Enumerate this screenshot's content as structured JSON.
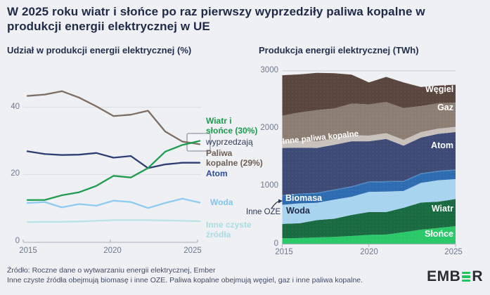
{
  "title": "W 2025 roku wiatr i słońce po raz pierwszy wyprzedziły paliwa kopalne w\nprodukcji energii elektrycznej w UE",
  "colors": {
    "background": "#eef0f4",
    "title_text": "#1e2a47",
    "axis_text": "#6d778e",
    "grid_line": "#d9dce2",
    "axis_line": "#a6adba",
    "highlight_box_stroke": "#9199a6",
    "logo_text": "#2b2c33",
    "logo_green": "#21c55d"
  },
  "left_chart": {
    "annotations": {
      "wind_solar": "Wiatr i\nsłońce (30%)",
      "overtake": "wyprzedzają",
      "fossil": "Paliwa\nkopalne (29%)",
      "atom": "Atom",
      "water": "Woda",
      "other_clean": "Inne czyste\nźródła"
    }
  },
  "footer": {
    "line1": "Źródło: Roczne dane o wytwarzaniu energii elektrycznej, Ember",
    "line2": "Inne czyste źródła obejmują biomasę i inne OZE. Paliwa kopalne obejmują węgiel, gaz i inne paliwa kopalne."
  },
  "logo": {
    "text": "EMBER",
    "part1": "EMB",
    "part2": "R"
  },
  "chart_data": [
    {
      "type": "line",
      "title": "Udział w produkcji energii elektrycznej (%)",
      "ylabel": "%",
      "ylim": [
        0,
        47
      ],
      "grid_values": [
        40,
        20
      ],
      "x": [
        2015,
        2016,
        2017,
        2018,
        2019,
        2020,
        2021,
        2022,
        2023,
        2024,
        2025
      ],
      "x_ticks": [
        "2015",
        "2020",
        "2025"
      ],
      "y_ticks": [
        "40",
        "20",
        "0"
      ],
      "series": [
        {
          "name": "Inne czyste źródła",
          "color": "#b8e2e6",
          "values": [
            5.8,
            5.9,
            5.9,
            6.0,
            6.2,
            6.4,
            6.4,
            6.4,
            6.3,
            6.2,
            6.1
          ]
        },
        {
          "name": "Woda",
          "color": "#8ecbf0",
          "values": [
            11.5,
            11.8,
            10.2,
            11.2,
            10.7,
            12.2,
            11.8,
            10.0,
            11.5,
            12.8,
            11.6
          ]
        },
        {
          "name": "Atom",
          "color": "#2b3f72",
          "values": [
            26.9,
            26.1,
            25.8,
            25.9,
            26.4,
            25.0,
            25.5,
            21.9,
            23.0,
            23.5,
            23.5
          ]
        },
        {
          "name": "Paliwa kopalne",
          "color": "#7d6e64",
          "values": [
            43.4,
            43.8,
            44.8,
            42.9,
            40.3,
            37.4,
            37.8,
            39.0,
            32.8,
            29.8,
            29.0
          ]
        },
        {
          "name": "Wiatr i słońce",
          "color": "#1f9d4f",
          "values": [
            12.4,
            12.4,
            13.8,
            14.7,
            16.6,
            19.6,
            19.1,
            21.9,
            26.8,
            28.8,
            30.0
          ]
        }
      ]
    },
    {
      "type": "area",
      "stacked": true,
      "title": "Produkcja energii elektrycznej (TWh)",
      "ylabel": "TWh",
      "ylim": [
        0,
        3000
      ],
      "grid_values": [
        3000
      ],
      "x": [
        2015,
        2016,
        2017,
        2018,
        2019,
        2020,
        2021,
        2022,
        2023,
        2024,
        2025
      ],
      "x_ticks": [
        "2015",
        "2020",
        "2025"
      ],
      "y_ticks": [
        "3000",
        "2000",
        "1000",
        "0"
      ],
      "series": [
        {
          "name": "Słońce",
          "color": "#2bc86a",
          "values": [
            100,
            105,
            115,
            125,
            140,
            160,
            165,
            205,
            250,
            280,
            310
          ]
        },
        {
          "name": "Wiatr",
          "color": "#1a6b41",
          "values": [
            250,
            255,
            300,
            315,
            365,
            395,
            390,
            425,
            470,
            455,
            470
          ]
        },
        {
          "name": "Woda",
          "color": "#a9d4f0",
          "values": [
            330,
            345,
            300,
            330,
            315,
            350,
            355,
            290,
            340,
            370,
            345
          ]
        },
        {
          "name": "Biomasa",
          "color": "#2d6cb0",
          "values": [
            150,
            155,
            160,
            160,
            165,
            165,
            165,
            160,
            150,
            150,
            150
          ]
        },
        {
          "name": "Inne OZE",
          "color": "#4a86c2",
          "values": [
            15,
            15,
            15,
            15,
            15,
            15,
            15,
            15,
            15,
            15,
            15
          ]
        },
        {
          "name": "Atom",
          "color": "#3e4b76",
          "values": [
            820,
            795,
            775,
            775,
            780,
            695,
            730,
            610,
            620,
            640,
            650
          ]
        },
        {
          "name": "Inne paliwa kopalne",
          "color": "#c9c2bc",
          "values": [
            120,
            115,
            115,
            110,
            105,
            100,
            100,
            100,
            95,
            90,
            90
          ]
        },
        {
          "name": "Gaz",
          "color": "#8d7e74",
          "values": [
            440,
            495,
            540,
            520,
            550,
            540,
            540,
            550,
            450,
            440,
            420
          ]
        },
        {
          "name": "Węgiel",
          "color": "#5a463e",
          "values": [
            700,
            660,
            645,
            610,
            500,
            380,
            435,
            445,
            330,
            305,
            310
          ]
        }
      ]
    }
  ]
}
